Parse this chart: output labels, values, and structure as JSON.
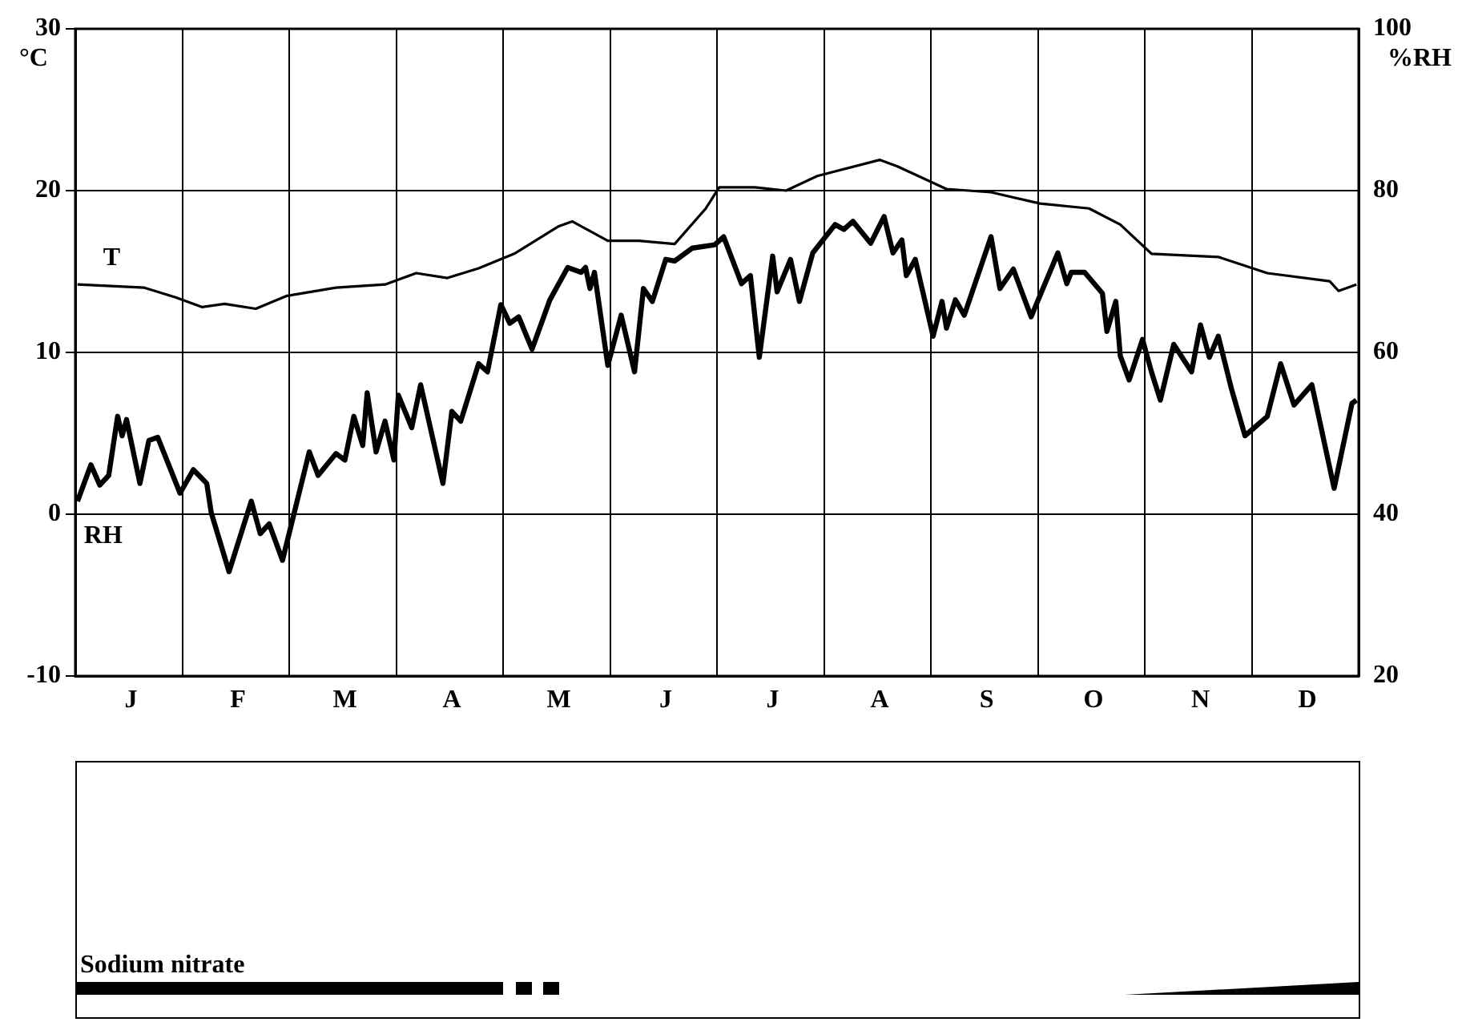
{
  "chart_data": [
    {
      "type": "line",
      "ylabel": "°C",
      "y2label": "%RH",
      "categories": [
        null,
        null,
        null,
        null,
        null,
        null,
        null,
        null,
        null,
        null,
        null,
        null,
        "J",
        null,
        null,
        null,
        null,
        null,
        null,
        null,
        null,
        null,
        null,
        null,
        null,
        null,
        null,
        null,
        null,
        null,
        null,
        null,
        null,
        null,
        null,
        null,
        "F",
        null,
        null,
        null,
        null,
        null,
        null,
        null,
        null,
        null,
        null,
        null,
        null,
        null,
        null,
        null,
        null,
        null,
        null,
        null,
        null,
        null,
        null,
        null,
        "M",
        null,
        null,
        null,
        null,
        null,
        null,
        null,
        null,
        null,
        null,
        null,
        null,
        null,
        null,
        null,
        null,
        null,
        null,
        null,
        null,
        null,
        null,
        null,
        "A",
        null,
        null,
        null,
        null,
        null,
        null,
        null,
        null,
        null,
        null,
        null,
        null,
        null,
        null,
        null,
        null,
        null,
        null,
        null,
        null,
        null,
        null,
        null,
        "M",
        null,
        null,
        null,
        null,
        null,
        null,
        null,
        null,
        null,
        null,
        null,
        null,
        null,
        null,
        null,
        null,
        null,
        null,
        null,
        null,
        null,
        null,
        null,
        "J",
        null,
        null,
        null,
        null,
        null,
        null,
        null,
        null,
        null,
        null,
        null,
        null,
        null,
        null,
        null,
        null,
        null,
        null,
        null,
        null,
        null,
        null,
        null,
        "J",
        null,
        null,
        null,
        null,
        null,
        null,
        null,
        null,
        null,
        null,
        null,
        null,
        null,
        null,
        null,
        null,
        null,
        null,
        null,
        null,
        null,
        null,
        null,
        "A",
        null,
        null,
        null,
        null,
        null,
        null,
        null,
        null,
        null,
        null,
        null,
        null,
        null,
        null,
        null,
        null,
        null,
        null,
        null,
        null,
        null,
        null,
        null,
        "S",
        null,
        null,
        null,
        null,
        null,
        null,
        null,
        null,
        null,
        null,
        null,
        null,
        null,
        null,
        null,
        null,
        null,
        null,
        null,
        null,
        null,
        null,
        null,
        "O",
        null,
        null,
        null,
        null,
        null,
        null,
        null,
        null,
        null,
        null,
        null,
        null,
        null,
        null,
        null,
        null,
        null,
        null,
        null,
        null,
        null,
        null,
        null,
        "N",
        null,
        null,
        null,
        null,
        null,
        null,
        null,
        null,
        null,
        null,
        null,
        null,
        null,
        null,
        null,
        null,
        null,
        null,
        null,
        null,
        null,
        null,
        null,
        "D",
        null,
        null,
        null,
        null,
        null,
        null,
        null,
        null,
        null,
        null,
        null
      ],
      "ylim": [
        -10,
        30
      ],
      "yticks": [
        -10,
        0,
        10,
        20,
        30
      ],
      "y2lim": [
        20,
        100
      ],
      "y2ticks": [
        20,
        40,
        60,
        80,
        100
      ],
      "grid": true,
      "legend": false,
      "marker": "none",
      "line_style": "solid",
      "series": [
        {
          "name": "T",
          "color": "#000000",
          "values": [
            14.2,
            null,
            null,
            null,
            null,
            null,
            null,
            null,
            null,
            null,
            null,
            null,
            null,
            null,
            null,
            14,
            null,
            null,
            null,
            null,
            null,
            null,
            13.4,
            null,
            null,
            null,
            null,
            null,
            12.8,
            null,
            null,
            null,
            null,
            13,
            null,
            null,
            null,
            null,
            null,
            null,
            12.7,
            null,
            null,
            null,
            null,
            null,
            null,
            13.5,
            null,
            null,
            null,
            null,
            null,
            null,
            null,
            null,
            null,
            null,
            14,
            null,
            null,
            null,
            null,
            null,
            null,
            null,
            null,
            null,
            null,
            14.2,
            null,
            null,
            null,
            null,
            null,
            null,
            14.9,
            null,
            null,
            null,
            null,
            null,
            null,
            14.6,
            null,
            null,
            null,
            null,
            null,
            null,
            15.2,
            null,
            null,
            null,
            null,
            null,
            null,
            null,
            16.1,
            null,
            null,
            null,
            null,
            null,
            null,
            null,
            null,
            null,
            17.8,
            null,
            null,
            18.1,
            null,
            null,
            null,
            null,
            null,
            null,
            null,
            16.9,
            null,
            null,
            null,
            null,
            null,
            null,
            16.9,
            null,
            null,
            null,
            null,
            null,
            null,
            null,
            16.7,
            null,
            null,
            null,
            null,
            null,
            null,
            18.9,
            null,
            null,
            20.2,
            null,
            null,
            null,
            null,
            null,
            null,
            null,
            20.2,
            null,
            null,
            null,
            null,
            null,
            null,
            20,
            null,
            null,
            null,
            null,
            null,
            null,
            20.9,
            null,
            null,
            null,
            null,
            null,
            null,
            null,
            null,
            null,
            null,
            null,
            null,
            null,
            21.9,
            null,
            null,
            null,
            21.5,
            null,
            null,
            null,
            null,
            null,
            null,
            null,
            null,
            null,
            null,
            20.1,
            null,
            null,
            null,
            null,
            null,
            null,
            null,
            null,
            null,
            19.9,
            null,
            null,
            null,
            null,
            null,
            null,
            null,
            null,
            null,
            null,
            19.2,
            null,
            null,
            null,
            null,
            null,
            null,
            null,
            null,
            null,
            null,
            18.9,
            null,
            null,
            null,
            null,
            null,
            null,
            17.9,
            null,
            null,
            null,
            null,
            null,
            null,
            16.1,
            null,
            null,
            null,
            null,
            null,
            null,
            null,
            null,
            null,
            null,
            null,
            null,
            null,
            null,
            15.9,
            null,
            null,
            null,
            null,
            null,
            null,
            null,
            null,
            null,
            null,
            14.9,
            null,
            null,
            null,
            null,
            null,
            null,
            null,
            null,
            null,
            null,
            null,
            null,
            null,
            14.4,
            null,
            13.8,
            null,
            null,
            null,
            14.2
          ]
        },
        {
          "name": "RH",
          "color": "#000000",
          "axis": "y2",
          "values": [
            41.6,
            null,
            null,
            46.1,
            null,
            43.6,
            null,
            44.8,
            null,
            52.1,
            49.7,
            51.7,
            null,
            null,
            43.8,
            null,
            49.1,
            null,
            49.5,
            null,
            null,
            null,
            null,
            42.6,
            null,
            null,
            45.5,
            null,
            null,
            43.8,
            40.2,
            null,
            null,
            null,
            32.9,
            null,
            null,
            null,
            null,
            41.6,
            null,
            37.6,
            null,
            38.8,
            null,
            null,
            34.3,
            null,
            null,
            null,
            null,
            null,
            47.7,
            null,
            44.8,
            null,
            null,
            null,
            47.5,
            null,
            46.7,
            null,
            52.1,
            null,
            48.5,
            55,
            null,
            47.7,
            null,
            51.5,
            null,
            46.7,
            54.7,
            null,
            null,
            50.7,
            null,
            56,
            null,
            null,
            null,
            null,
            43.8,
            null,
            52.7,
            null,
            51.5,
            null,
            null,
            null,
            58.6,
            null,
            57.6,
            null,
            null,
            65.9,
            null,
            63.6,
            null,
            64.4,
            null,
            null,
            60.4,
            null,
            null,
            null,
            66.5,
            null,
            null,
            null,
            70.5,
            null,
            null,
            69.9,
            70.5,
            67.9,
            69.9,
            null,
            null,
            58.4,
            null,
            null,
            64.6,
            null,
            null,
            57.6,
            null,
            67.9,
            null,
            66.3,
            null,
            null,
            71.5,
            null,
            71.3,
            null,
            null,
            null,
            72.9,
            null,
            null,
            null,
            null,
            73.3,
            null,
            74.3,
            null,
            null,
            null,
            68.5,
            null,
            69.5,
            null,
            59.4,
            null,
            null,
            71.9,
            67.5,
            null,
            null,
            71.5,
            null,
            66.3,
            null,
            null,
            72.3,
            null,
            null,
            null,
            null,
            75.8,
            null,
            75.2,
            null,
            76.2,
            null,
            null,
            null,
            73.5,
            null,
            null,
            76.8,
            null,
            72.3,
            null,
            73.9,
            69.5,
            null,
            71.5,
            null,
            null,
            null,
            62,
            null,
            66.3,
            63,
            null,
            66.5,
            null,
            64.6,
            null,
            null,
            null,
            null,
            null,
            74.3,
            null,
            67.9,
            null,
            null,
            70.3,
            null,
            null,
            null,
            64.4,
            null,
            null,
            null,
            null,
            null,
            72.3,
            null,
            68.5,
            69.9,
            null,
            null,
            69.9,
            null,
            null,
            null,
            67.3,
            62.6,
            null,
            66.3,
            59.6,
            null,
            56.6,
            null,
            null,
            61.6,
            null,
            57.6,
            null,
            54.1,
            null,
            null,
            61,
            null,
            null,
            null,
            57.6,
            null,
            63.4,
            null,
            59.4,
            null,
            62,
            null,
            null,
            55.4,
            null,
            null,
            49.7,
            null,
            null,
            null,
            null,
            52.1,
            null,
            null,
            58.6,
            null,
            null,
            53.5,
            null,
            null,
            null,
            56,
            null,
            null,
            null,
            null,
            43.2,
            null,
            null,
            null,
            53.7,
            54.1
          ]
        }
      ]
    },
    {
      "type": "other",
      "annotations": [
        "Sodium nitrate"
      ]
    }
  ]
}
